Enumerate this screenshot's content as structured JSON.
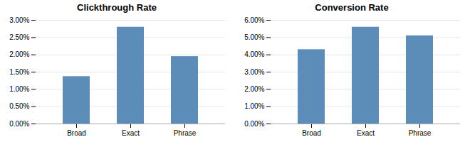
{
  "chart_data": [
    {
      "type": "bar",
      "title": "Clickthrough Rate",
      "categories": [
        "Broad",
        "Exact",
        "Phrase"
      ],
      "values": [
        0.0137,
        0.028,
        0.0195
      ],
      "color": "#5b8db8",
      "ylim": [
        0,
        0.03
      ],
      "yticks": [
        {
          "value": 0.0,
          "label": "0.00%"
        },
        {
          "value": 0.005,
          "label": "0.50%"
        },
        {
          "value": 0.01,
          "label": "1.00%"
        },
        {
          "value": 0.015,
          "label": "1.50%"
        },
        {
          "value": 0.02,
          "label": "2.00%"
        },
        {
          "value": 0.025,
          "label": "2.50%"
        },
        {
          "value": 0.03,
          "label": "3.00%"
        }
      ],
      "grid": true
    },
    {
      "type": "bar",
      "title": "Conversion Rate",
      "categories": [
        "Broad",
        "Exact",
        "Phrase"
      ],
      "values": [
        0.043,
        0.056,
        0.051
      ],
      "color": "#5b8db8",
      "ylim": [
        0,
        0.06
      ],
      "yticks": [
        {
          "value": 0.0,
          "label": "0.00%"
        },
        {
          "value": 0.01,
          "label": "1.00%"
        },
        {
          "value": 0.02,
          "label": "2.00%"
        },
        {
          "value": 0.03,
          "label": "3.00%"
        },
        {
          "value": 0.04,
          "label": "4.00%"
        },
        {
          "value": 0.05,
          "label": "5.00%"
        },
        {
          "value": 0.06,
          "label": "6.00%"
        }
      ],
      "grid": true
    }
  ]
}
